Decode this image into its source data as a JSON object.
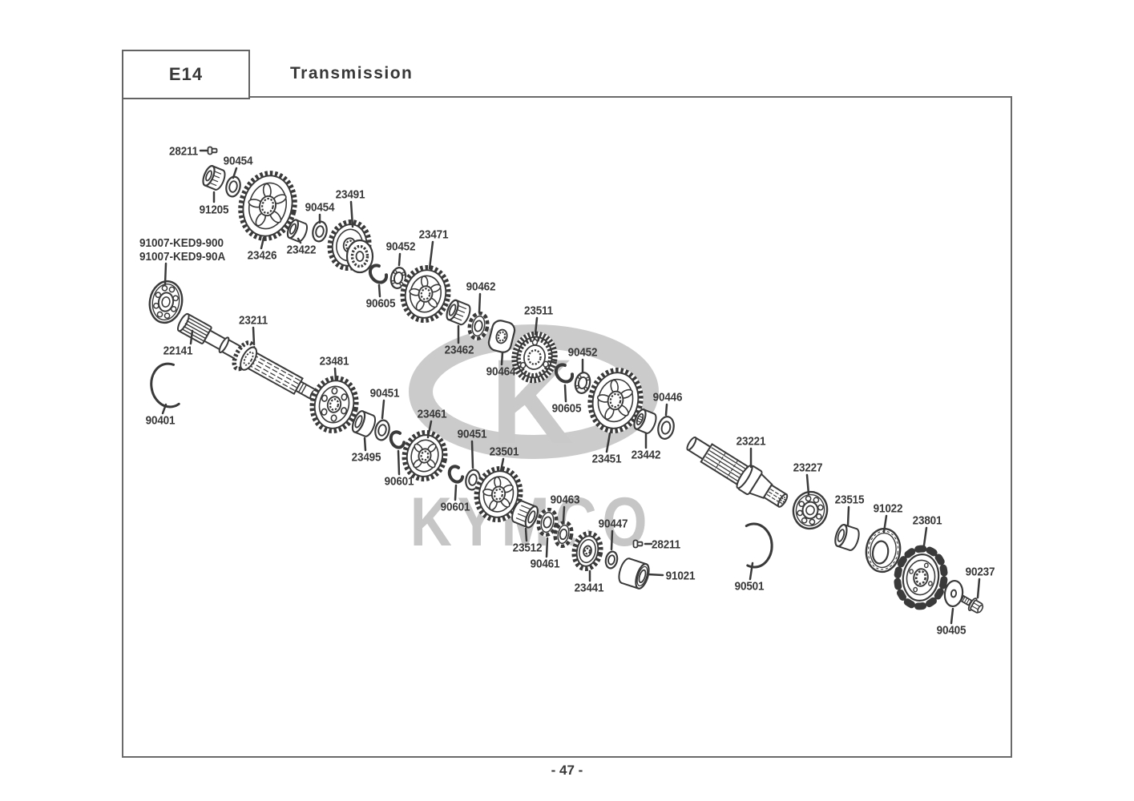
{
  "header": {
    "code": "E14",
    "title": "Transmission"
  },
  "footer": {
    "page": "- 47 -"
  },
  "watermark": {
    "logo_letter": "K",
    "brand": "KYMCO"
  },
  "parts": [
    {
      "id": "28211-a",
      "number": "28211",
      "shape": "dowel-pin"
    },
    {
      "id": "90454-a",
      "number": "90454",
      "shape": "washer"
    },
    {
      "id": "91205",
      "number": "91205",
      "shape": "needle-bearing"
    },
    {
      "id": "23426",
      "number": "23426",
      "shape": "gear"
    },
    {
      "id": "23422",
      "number": "23422",
      "shape": "collar"
    },
    {
      "id": "90454-b",
      "number": "90454",
      "shape": "washer"
    },
    {
      "id": "23491",
      "number": "23491",
      "shape": "gear"
    },
    {
      "id": "91007-ked9-900",
      "number": "91007-KED9-900",
      "shape": "ball-bearing"
    },
    {
      "id": "91007-ked9-90a",
      "number": "91007-KED9-90A",
      "shape": "ball-bearing"
    },
    {
      "id": "22141",
      "number": "22141",
      "shape": "pin"
    },
    {
      "id": "23211",
      "number": "23211",
      "shape": "mainshaft"
    },
    {
      "id": "90401",
      "number": "90401",
      "shape": "snap-ring"
    },
    {
      "id": "23481",
      "number": "23481",
      "shape": "gear"
    },
    {
      "id": "90605-a",
      "number": "90605",
      "shape": "circlip"
    },
    {
      "id": "90452-a",
      "number": "90452",
      "shape": "washer"
    },
    {
      "id": "23471",
      "number": "23471",
      "shape": "gear"
    },
    {
      "id": "23462",
      "number": "23462",
      "shape": "roller-bearing"
    },
    {
      "id": "90462",
      "number": "90462",
      "shape": "lock-washer"
    },
    {
      "id": "90464",
      "number": "90464",
      "shape": "plate"
    },
    {
      "id": "23511",
      "number": "23511",
      "shape": "gear-hub"
    },
    {
      "id": "90452-b",
      "number": "90452",
      "shape": "washer"
    },
    {
      "id": "90605-b",
      "number": "90605",
      "shape": "circlip"
    },
    {
      "id": "23451",
      "number": "23451",
      "shape": "gear"
    },
    {
      "id": "23442",
      "number": "23442",
      "shape": "bushing"
    },
    {
      "id": "90446",
      "number": "90446",
      "shape": "washer"
    },
    {
      "id": "23221",
      "number": "23221",
      "shape": "output-shaft"
    },
    {
      "id": "23227",
      "number": "23227",
      "shape": "ball-bearing"
    },
    {
      "id": "23515",
      "number": "23515",
      "shape": "bushing"
    },
    {
      "id": "91022",
      "number": "91022",
      "shape": "oil-seal"
    },
    {
      "id": "23801",
      "number": "23801",
      "shape": "sprocket"
    },
    {
      "id": "90237",
      "number": "90237",
      "shape": "bolt"
    },
    {
      "id": "90405",
      "number": "90405",
      "shape": "washer"
    },
    {
      "id": "23512",
      "number": "23512",
      "shape": "roller-bearing"
    },
    {
      "id": "90461",
      "number": "90461",
      "shape": "lock-washer"
    },
    {
      "id": "90463",
      "number": "90463",
      "shape": "lock-washer"
    },
    {
      "id": "23441",
      "number": "23441",
      "shape": "gear"
    },
    {
      "id": "90447",
      "number": "90447",
      "shape": "washer"
    },
    {
      "id": "28211-b",
      "number": "28211",
      "shape": "dowel-pin"
    },
    {
      "id": "91021",
      "number": "91021",
      "shape": "bushing"
    },
    {
      "id": "90501",
      "number": "90501",
      "shape": "snap-ring"
    },
    {
      "id": "90601-a",
      "number": "90601",
      "shape": "circlip"
    },
    {
      "id": "23495",
      "number": "23495",
      "shape": "bushing"
    },
    {
      "id": "90451-a",
      "number": "90451",
      "shape": "washer"
    },
    {
      "id": "23461",
      "number": "23461",
      "shape": "gear"
    },
    {
      "id": "90601-b",
      "number": "90601",
      "shape": "circlip"
    },
    {
      "id": "90451-b",
      "number": "90451",
      "shape": "washer"
    },
    {
      "id": "23501",
      "number": "23501",
      "shape": "gear"
    }
  ]
}
